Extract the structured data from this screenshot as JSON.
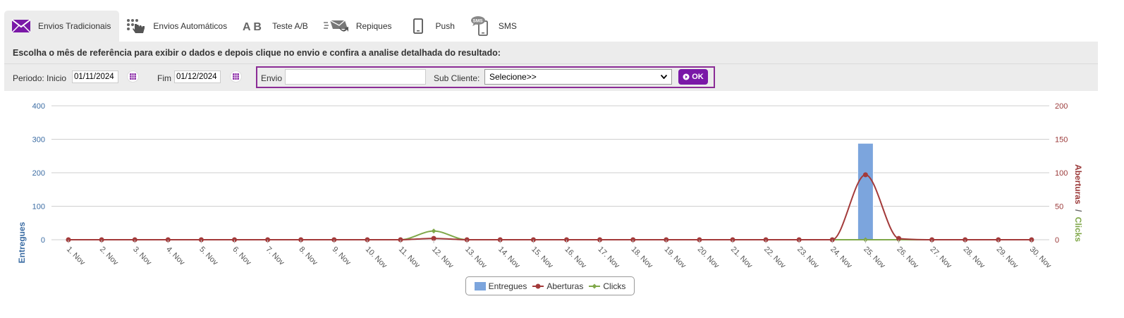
{
  "tabs": [
    {
      "label": "Envios Tradicionais",
      "icon": "envelope-icon",
      "active": true
    },
    {
      "label": "Envios Automáticos",
      "icon": "automation-hand-icon",
      "active": false
    },
    {
      "label": "Teste A/B",
      "icon": "ab-test-icon",
      "active": false
    },
    {
      "label": "Repiques",
      "icon": "resend-envelope-icon",
      "active": false
    },
    {
      "label": "Push",
      "icon": "mobile-phone-icon",
      "active": false
    },
    {
      "label": "SMS",
      "icon": "sms-phone-icon",
      "active": false
    }
  ],
  "instructions": "Escolha o mês de referência para exibir o dados e depois clique no envio e confira a analise detalhada do resultado:",
  "filters": {
    "period_label": "Periodo: Inicio",
    "start_date": "01/11/2024",
    "end_label": "Fim",
    "end_date": "01/12/2024",
    "envio_label": "Envio",
    "envio_value": "",
    "subcliente_label": "Sub Cliente:",
    "subcliente_selected": "Selecione>>",
    "ok_label": "OK"
  },
  "colors": {
    "accent": "#7a18a7",
    "entregues": "#7ca5dd",
    "aberturas": "#a33a3a",
    "clicks": "#80a84a",
    "left_axis": "#3b6ca3",
    "right_axis": "#9b3a3a"
  },
  "chart_data": {
    "type": "bar",
    "categories": [
      "1. Nov",
      "2. Nov",
      "3. Nov",
      "4. Nov",
      "5. Nov",
      "6. Nov",
      "7. Nov",
      "8. Nov",
      "9. Nov",
      "10. Nov",
      "11. Nov",
      "12. Nov",
      "13. Nov",
      "14. Nov",
      "15. Nov",
      "16. Nov",
      "17. Nov",
      "18. Nov",
      "19. Nov",
      "20. Nov",
      "21. Nov",
      "22. Nov",
      "23. Nov",
      "24. Nov",
      "25. Nov",
      "26. Nov",
      "27. Nov",
      "28. Nov",
      "29. Nov",
      "30. Nov"
    ],
    "y_left": {
      "label": "Entregues",
      "ticks": [
        0,
        100,
        200,
        300,
        400
      ],
      "range": [
        0,
        400
      ]
    },
    "y_right": {
      "label_1": "Aberturas",
      "separator": "/",
      "label_2": "Clicks",
      "ticks": [
        0,
        50,
        100,
        150,
        200
      ],
      "range": [
        0,
        200
      ]
    },
    "grid": true,
    "legend_position": "bottom-center",
    "series": [
      {
        "name": "Entregues",
        "type": "bar",
        "axis": "left",
        "values": [
          0,
          0,
          0,
          0,
          0,
          0,
          0,
          0,
          0,
          0,
          0,
          0,
          0,
          0,
          0,
          0,
          0,
          0,
          0,
          0,
          0,
          0,
          0,
          0,
          288,
          0,
          0,
          0,
          0,
          0
        ]
      },
      {
        "name": "Aberturas",
        "type": "spline",
        "axis": "right",
        "values": [
          0,
          0,
          0,
          0,
          0,
          0,
          0,
          0,
          0,
          0,
          0,
          2,
          0,
          0,
          0,
          0,
          0,
          0,
          0,
          0,
          0,
          0,
          0,
          0,
          97,
          2,
          0,
          0,
          0,
          0
        ]
      },
      {
        "name": "Clicks",
        "type": "spline",
        "axis": "right",
        "values": [
          0,
          0,
          0,
          0,
          0,
          0,
          0,
          0,
          0,
          0,
          0,
          13,
          0,
          0,
          0,
          0,
          0,
          0,
          0,
          0,
          0,
          0,
          0,
          0,
          0,
          0,
          0,
          0,
          0,
          0
        ]
      }
    ]
  }
}
